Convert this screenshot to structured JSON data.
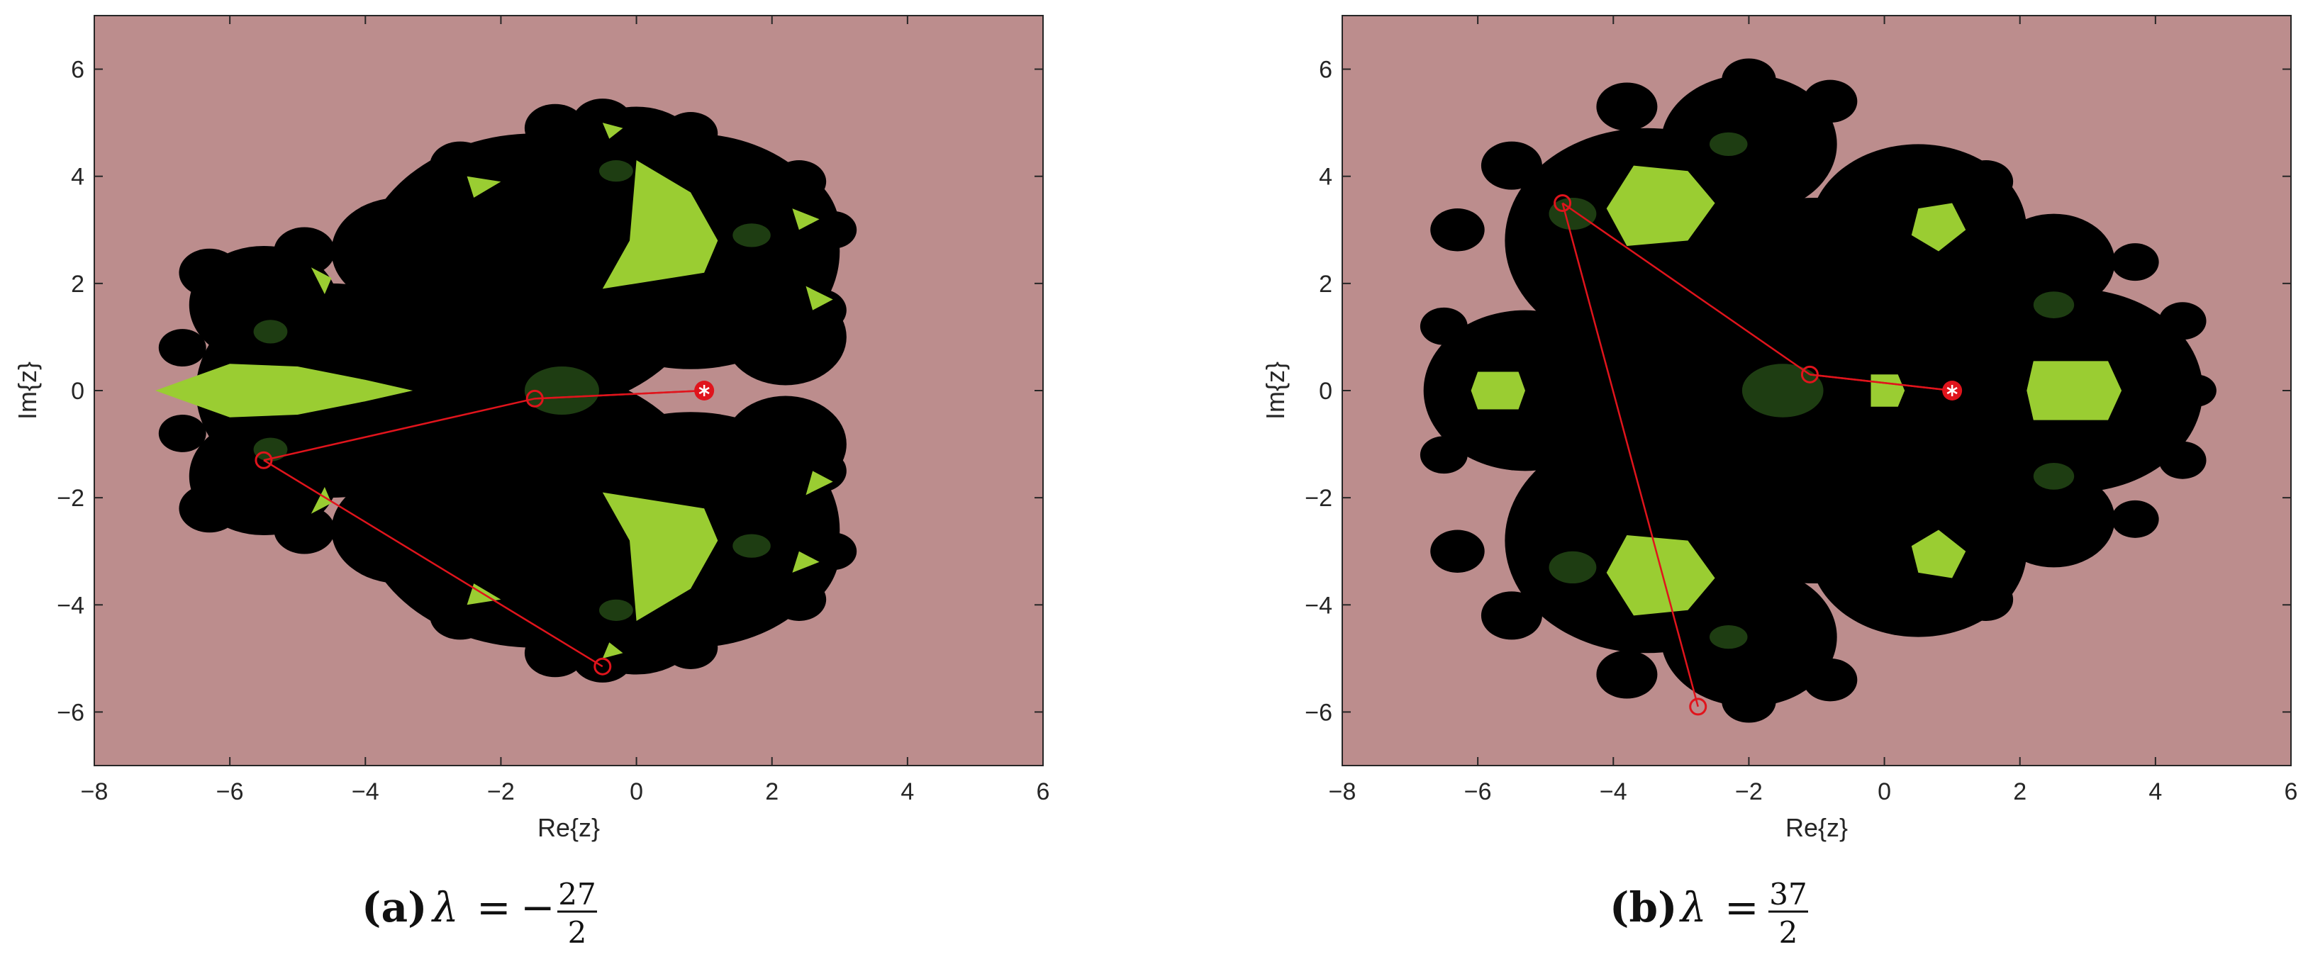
{
  "chart_data": [
    {
      "type": "scatter",
      "panel": "(a)",
      "caption": {
        "label": "(a)",
        "lambda": "λ",
        "equals": "=",
        "sign": "−",
        "numerator": "27",
        "denominator": "2"
      },
      "xlabel": "Re{z}",
      "ylabel": "Im{z}",
      "xlim": [
        -8,
        6
      ],
      "ylim": [
        -7,
        7
      ],
      "xticks": [
        -8,
        -6,
        -4,
        -2,
        0,
        2,
        4,
        6
      ],
      "yticks": [
        -6,
        -4,
        -2,
        0,
        2,
        4,
        6
      ],
      "xticklabels": [
        "−8",
        "−6",
        "−4",
        "−2",
        "0",
        "2",
        "4",
        "6"
      ],
      "yticklabels": [
        "−6",
        "−4",
        "−2",
        "0",
        "2",
        "4",
        "6"
      ],
      "grid": false,
      "orbit": {
        "x": [
          1.0,
          -1.5,
          -5.5,
          -0.5
        ],
        "y": [
          0.0,
          -0.15,
          -1.3,
          -5.15
        ]
      },
      "closure_edge": [
        [
          -1.5,
          -0.15
        ],
        [
          1.0,
          0.0
        ]
      ],
      "fixed_point": {
        "x": 1.0,
        "y": 0.0
      },
      "fractal": {
        "lobes": [
          {
            "cx": -1.5,
            "cy": 2.2,
            "r": 2.6
          },
          {
            "cx": -1.5,
            "cy": -2.2,
            "r": 2.6
          },
          {
            "cx": -4.5,
            "cy": 0.0,
            "r": 2.0
          },
          {
            "cx": 0.8,
            "cy": 2.6,
            "r": 2.2
          },
          {
            "cx": 0.8,
            "cy": -2.6,
            "r": 2.2
          },
          {
            "cx": 1.6,
            "cy": 3.0,
            "r": 1.4
          },
          {
            "cx": 1.6,
            "cy": -3.0,
            "r": 1.4
          },
          {
            "cx": -5.5,
            "cy": 1.6,
            "r": 1.1
          },
          {
            "cx": -5.5,
            "cy": -1.6,
            "r": 1.1
          },
          {
            "cx": -3.5,
            "cy": 2.6,
            "r": 1.0
          },
          {
            "cx": -3.5,
            "cy": -2.6,
            "r": 1.0
          },
          {
            "cx": 0.0,
            "cy": 4.3,
            "r": 1.0
          },
          {
            "cx": 0.0,
            "cy": -4.3,
            "r": 1.0
          },
          {
            "cx": 2.2,
            "cy": 1.0,
            "r": 0.9
          },
          {
            "cx": 2.2,
            "cy": -1.0,
            "r": 0.9
          }
        ],
        "bumps": [
          {
            "cx": -6.3,
            "cy": 2.2,
            "r": 0.45
          },
          {
            "cx": -6.3,
            "cy": -2.2,
            "r": 0.45
          },
          {
            "cx": -6.7,
            "cy": 0.8,
            "r": 0.35
          },
          {
            "cx": -6.7,
            "cy": -0.8,
            "r": 0.35
          },
          {
            "cx": -4.9,
            "cy": 2.6,
            "r": 0.45
          },
          {
            "cx": -4.9,
            "cy": -2.6,
            "r": 0.45
          },
          {
            "cx": -3.8,
            "cy": 2.9,
            "r": 0.35
          },
          {
            "cx": -3.8,
            "cy": -2.9,
            "r": 0.35
          },
          {
            "cx": -2.6,
            "cy": 4.2,
            "r": 0.45
          },
          {
            "cx": -2.6,
            "cy": -4.2,
            "r": 0.45
          },
          {
            "cx": -1.2,
            "cy": 4.9,
            "r": 0.45
          },
          {
            "cx": -1.2,
            "cy": -4.9,
            "r": 0.45
          },
          {
            "cx": -0.5,
            "cy": 5.0,
            "r": 0.45
          },
          {
            "cx": -0.5,
            "cy": -5.0,
            "r": 0.45
          },
          {
            "cx": 0.8,
            "cy": 4.8,
            "r": 0.4
          },
          {
            "cx": 0.8,
            "cy": -4.8,
            "r": 0.4
          },
          {
            "cx": 2.4,
            "cy": 3.9,
            "r": 0.4
          },
          {
            "cx": 2.4,
            "cy": -3.9,
            "r": 0.4
          },
          {
            "cx": 2.9,
            "cy": 3.0,
            "r": 0.35
          },
          {
            "cx": 2.9,
            "cy": -3.0,
            "r": 0.35
          },
          {
            "cx": 2.7,
            "cy": 1.5,
            "r": 0.4
          },
          {
            "cx": 2.7,
            "cy": -1.5,
            "r": 0.4
          }
        ],
        "basins": [
          {
            "shape": "leaf",
            "pts": [
              [
                -7.1,
                0.0
              ],
              [
                -6.0,
                0.5
              ],
              [
                -5.0,
                0.45
              ],
              [
                -4.0,
                0.2
              ],
              [
                -3.3,
                0.0
              ],
              [
                -4.0,
                -0.2
              ],
              [
                -5.0,
                -0.45
              ],
              [
                -6.0,
                -0.5
              ]
            ]
          },
          {
            "shape": "leaf",
            "pts": [
              [
                0.0,
                4.3
              ],
              [
                0.8,
                3.7
              ],
              [
                1.2,
                2.8
              ],
              [
                1.0,
                2.2
              ],
              [
                -0.5,
                1.9
              ],
              [
                -0.1,
                2.8
              ]
            ]
          },
          {
            "shape": "leaf",
            "pts": [
              [
                0.0,
                -4.3
              ],
              [
                0.8,
                -3.7
              ],
              [
                1.2,
                -2.8
              ],
              [
                1.0,
                -2.2
              ],
              [
                -0.5,
                -1.9
              ],
              [
                -0.1,
                -2.8
              ]
            ]
          },
          {
            "shape": "blob",
            "pts": [
              [
                2.5,
                1.95
              ],
              [
                2.9,
                1.7
              ],
              [
                2.6,
                1.5
              ]
            ]
          },
          {
            "shape": "blob",
            "pts": [
              [
                2.5,
                -1.95
              ],
              [
                2.9,
                -1.7
              ],
              [
                2.6,
                -1.5
              ]
            ]
          },
          {
            "shape": "blob",
            "pts": [
              [
                -4.8,
                2.3
              ],
              [
                -4.5,
                2.1
              ],
              [
                -4.6,
                1.8
              ]
            ]
          },
          {
            "shape": "blob",
            "pts": [
              [
                -4.8,
                -2.3
              ],
              [
                -4.5,
                -2.1
              ],
              [
                -4.6,
                -1.8
              ]
            ]
          },
          {
            "shape": "blob",
            "pts": [
              [
                -2.5,
                4.0
              ],
              [
                -2.0,
                3.9
              ],
              [
                -2.4,
                3.6
              ]
            ]
          },
          {
            "shape": "blob",
            "pts": [
              [
                -2.5,
                -4.0
              ],
              [
                -2.0,
                -3.9
              ],
              [
                -2.4,
                -3.6
              ]
            ]
          },
          {
            "shape": "blob",
            "pts": [
              [
                -0.5,
                5.0
              ],
              [
                -0.2,
                4.9
              ],
              [
                -0.4,
                4.7
              ]
            ]
          },
          {
            "shape": "blob",
            "pts": [
              [
                -0.5,
                -5.0
              ],
              [
                -0.2,
                -4.9
              ],
              [
                -0.4,
                -4.7
              ]
            ]
          },
          {
            "shape": "blob",
            "pts": [
              [
                2.3,
                3.4
              ],
              [
                2.7,
                3.2
              ],
              [
                2.4,
                3.0
              ]
            ]
          },
          {
            "shape": "blob",
            "pts": [
              [
                2.3,
                -3.4
              ],
              [
                2.7,
                -3.2
              ],
              [
                2.4,
                -3.0
              ]
            ]
          }
        ],
        "darkspots": [
          {
            "cx": -1.1,
            "cy": 0.0,
            "rx": 0.55,
            "ry": 0.45
          },
          {
            "cx": -5.4,
            "cy": 1.1,
            "rx": 0.25,
            "ry": 0.22
          },
          {
            "cx": -5.4,
            "cy": -1.1,
            "rx": 0.25,
            "ry": 0.22
          },
          {
            "cx": -0.3,
            "cy": 4.1,
            "rx": 0.25,
            "ry": 0.2
          },
          {
            "cx": -0.3,
            "cy": -4.1,
            "rx": 0.25,
            "ry": 0.2
          },
          {
            "cx": 1.7,
            "cy": 2.9,
            "rx": 0.28,
            "ry": 0.22
          },
          {
            "cx": 1.7,
            "cy": -2.9,
            "rx": 0.28,
            "ry": 0.22
          }
        ]
      }
    },
    {
      "type": "scatter",
      "panel": "(b)",
      "caption": {
        "label": "(b)",
        "lambda": "λ",
        "equals": "=",
        "sign": "",
        "numerator": "37",
        "denominator": "2"
      },
      "xlabel": "Re{z}",
      "ylabel": "Im{z}",
      "xlim": [
        -8,
        6
      ],
      "ylim": [
        -7,
        7
      ],
      "xticks": [
        -8,
        -6,
        -4,
        -2,
        0,
        2,
        4,
        6
      ],
      "yticks": [
        -6,
        -4,
        -2,
        0,
        2,
        4,
        6
      ],
      "xticklabels": [
        "−8",
        "−6",
        "−4",
        "−2",
        "0",
        "2",
        "4",
        "6"
      ],
      "yticklabels": [
        "−6",
        "−4",
        "−2",
        "0",
        "2",
        "4",
        "6"
      ],
      "grid": false,
      "orbit": {
        "x": [
          1.0,
          -1.1,
          -4.75,
          -2.75
        ],
        "y": [
          0.0,
          0.3,
          3.5,
          -5.9
        ]
      },
      "closure_edge": [
        [
          -1.1,
          0.3
        ],
        [
          1.0,
          0.0
        ]
      ],
      "fixed_point": {
        "x": 1.0,
        "y": 0.0
      },
      "fractal": {
        "lobes": [
          {
            "cx": -1.0,
            "cy": 0.0,
            "r": 3.6
          },
          {
            "cx": -3.5,
            "cy": 2.8,
            "r": 2.1
          },
          {
            "cx": -3.5,
            "cy": -2.8,
            "r": 2.1
          },
          {
            "cx": 2.8,
            "cy": 0.0,
            "r": 1.9
          },
          {
            "cx": -5.3,
            "cy": 0.0,
            "r": 1.5
          },
          {
            "cx": -2.0,
            "cy": 4.6,
            "r": 1.3
          },
          {
            "cx": -2.0,
            "cy": -4.6,
            "r": 1.3
          },
          {
            "cx": 0.5,
            "cy": 3.0,
            "r": 1.6
          },
          {
            "cx": 0.5,
            "cy": -3.0,
            "r": 1.6
          },
          {
            "cx": 2.5,
            "cy": 2.4,
            "r": 0.9
          },
          {
            "cx": 2.5,
            "cy": -2.4,
            "r": 0.9
          }
        ],
        "bumps": [
          {
            "cx": -6.3,
            "cy": 3.0,
            "r": 0.4
          },
          {
            "cx": -6.3,
            "cy": -3.0,
            "r": 0.4
          },
          {
            "cx": -6.5,
            "cy": 1.2,
            "r": 0.35
          },
          {
            "cx": -6.5,
            "cy": -1.2,
            "r": 0.35
          },
          {
            "cx": -5.5,
            "cy": 4.2,
            "r": 0.45
          },
          {
            "cx": -5.5,
            "cy": -4.2,
            "r": 0.45
          },
          {
            "cx": -3.8,
            "cy": 5.3,
            "r": 0.45
          },
          {
            "cx": -3.8,
            "cy": -5.3,
            "r": 0.45
          },
          {
            "cx": -2.0,
            "cy": 5.8,
            "r": 0.4
          },
          {
            "cx": -2.0,
            "cy": -5.8,
            "r": 0.4
          },
          {
            "cx": -0.8,
            "cy": 5.4,
            "r": 0.4
          },
          {
            "cx": -0.8,
            "cy": -5.4,
            "r": 0.4
          },
          {
            "cx": 1.5,
            "cy": 3.9,
            "r": 0.4
          },
          {
            "cx": 1.5,
            "cy": -3.9,
            "r": 0.4
          },
          {
            "cx": 3.7,
            "cy": 2.4,
            "r": 0.35
          },
          {
            "cx": 3.7,
            "cy": -2.4,
            "r": 0.35
          },
          {
            "cx": 4.4,
            "cy": 1.3,
            "r": 0.35
          },
          {
            "cx": 4.4,
            "cy": -1.3,
            "r": 0.35
          },
          {
            "cx": 4.6,
            "cy": 0.0,
            "r": 0.3
          }
        ],
        "basins": [
          {
            "shape": "blob",
            "pts": [
              [
                -3.7,
                4.2
              ],
              [
                -2.9,
                4.1
              ],
              [
                -2.5,
                3.5
              ],
              [
                -2.9,
                2.8
              ],
              [
                -3.8,
                2.7
              ],
              [
                -4.1,
                3.4
              ]
            ]
          },
          {
            "shape": "blob",
            "pts": [
              [
                -3.7,
                -4.2
              ],
              [
                -2.9,
                -4.1
              ],
              [
                -2.5,
                -3.5
              ],
              [
                -2.9,
                -2.8
              ],
              [
                -3.8,
                -2.7
              ],
              [
                -4.1,
                -3.4
              ]
            ]
          },
          {
            "shape": "blob",
            "pts": [
              [
                2.2,
                0.55
              ],
              [
                3.3,
                0.55
              ],
              [
                3.5,
                0.0
              ],
              [
                3.3,
                -0.55
              ],
              [
                2.2,
                -0.55
              ],
              [
                2.1,
                0.0
              ]
            ]
          },
          {
            "shape": "blob",
            "pts": [
              [
                -6.0,
                0.35
              ],
              [
                -5.4,
                0.35
              ],
              [
                -5.3,
                0.0
              ],
              [
                -5.4,
                -0.35
              ],
              [
                -6.0,
                -0.35
              ],
              [
                -6.1,
                0.0
              ]
            ]
          },
          {
            "shape": "blob",
            "pts": [
              [
                0.5,
                3.4
              ],
              [
                1.0,
                3.5
              ],
              [
                1.2,
                3.0
              ],
              [
                0.8,
                2.6
              ],
              [
                0.4,
                2.9
              ]
            ]
          },
          {
            "shape": "blob",
            "pts": [
              [
                0.5,
                -3.4
              ],
              [
                1.0,
                -3.5
              ],
              [
                1.2,
                -3.0
              ],
              [
                0.8,
                -2.6
              ],
              [
                0.4,
                -2.9
              ]
            ]
          },
          {
            "shape": "blob",
            "pts": [
              [
                -0.2,
                0.3
              ],
              [
                0.2,
                0.3
              ],
              [
                0.3,
                0.0
              ],
              [
                0.2,
                -0.3
              ],
              [
                -0.2,
                -0.3
              ]
            ]
          }
        ],
        "darkspots": [
          {
            "cx": -1.5,
            "cy": 0.0,
            "rx": 0.6,
            "ry": 0.5
          },
          {
            "cx": -4.6,
            "cy": 3.3,
            "rx": 0.35,
            "ry": 0.3
          },
          {
            "cx": -4.6,
            "cy": -3.3,
            "rx": 0.35,
            "ry": 0.3
          },
          {
            "cx": -2.3,
            "cy": 4.6,
            "rx": 0.28,
            "ry": 0.22
          },
          {
            "cx": -2.3,
            "cy": -4.6,
            "rx": 0.28,
            "ry": 0.22
          },
          {
            "cx": 2.5,
            "cy": 1.6,
            "rx": 0.3,
            "ry": 0.25
          },
          {
            "cx": 2.5,
            "cy": -1.6,
            "rx": 0.3,
            "ry": 0.25
          }
        ]
      }
    }
  ],
  "colors": {
    "background_basin": "#bc8d8d",
    "julia_set": "#000000",
    "attracting_basin": "#9acd32",
    "dark_spot": "#1e3d12",
    "orbit": "#e0141c",
    "fixed_point_fill": "#e0141c",
    "fixed_point_star": "#ffffff",
    "axis": "#262626"
  }
}
